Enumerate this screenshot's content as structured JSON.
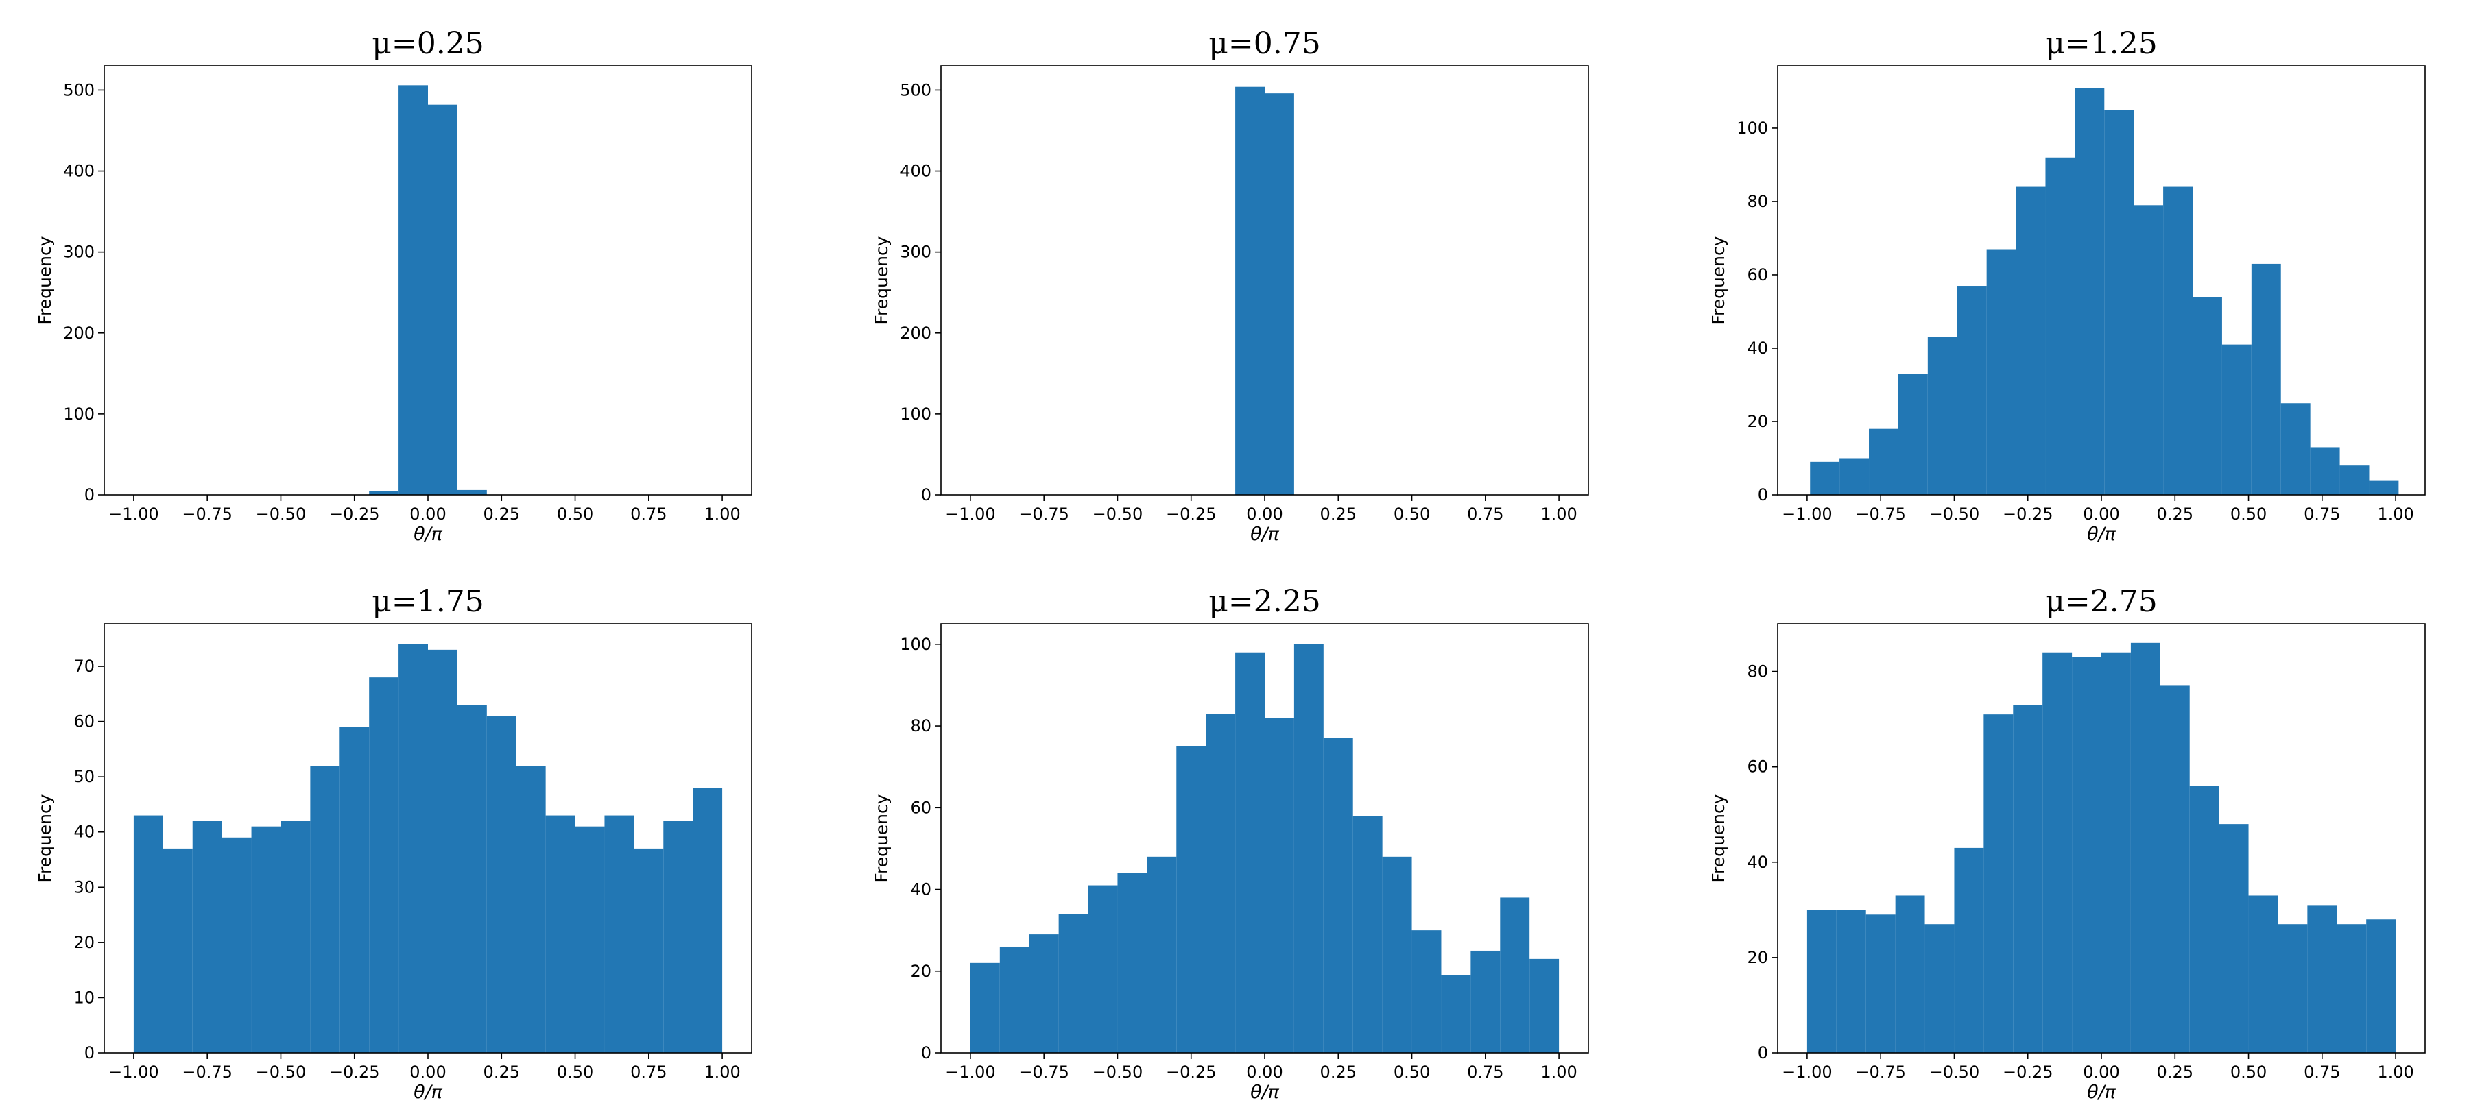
{
  "chart_data": [
    {
      "type": "bar",
      "title": "μ=0.25",
      "xlabel": "θ/π",
      "ylabel": "Frequency",
      "xlim": [
        -1.1,
        1.1
      ],
      "ylim": [
        0,
        530
      ],
      "grid": false,
      "xticks": [
        -1.0,
        -0.75,
        -0.5,
        -0.25,
        0.0,
        0.25,
        0.5,
        0.75,
        1.0
      ],
      "xtick_labels": [
        "−1.00",
        "−0.75",
        "−0.50",
        "−0.25",
        "0.00",
        "0.25",
        "0.50",
        "0.75",
        "1.00"
      ],
      "yticks": [
        0,
        100,
        200,
        300,
        400,
        500
      ],
      "ytick_labels": [
        "0",
        "100",
        "200",
        "300",
        "400",
        "500"
      ],
      "bin_edges": [
        -0.3,
        -0.2,
        -0.1,
        0.0,
        0.1,
        0.2
      ],
      "values": [
        0,
        5,
        506,
        482,
        6
      ]
    },
    {
      "type": "bar",
      "title": "μ=0.75",
      "xlabel": "θ/π",
      "ylabel": "Frequency",
      "xlim": [
        -1.1,
        1.1
      ],
      "ylim": [
        0,
        530
      ],
      "grid": false,
      "xticks": [
        -1.0,
        -0.75,
        -0.5,
        -0.25,
        0.0,
        0.25,
        0.5,
        0.75,
        1.0
      ],
      "xtick_labels": [
        "−1.00",
        "−0.75",
        "−0.50",
        "−0.25",
        "0.00",
        "0.25",
        "0.50",
        "0.75",
        "1.00"
      ],
      "yticks": [
        0,
        100,
        200,
        300,
        400,
        500
      ],
      "ytick_labels": [
        "0",
        "100",
        "200",
        "300",
        "400",
        "500"
      ],
      "bin_edges": [
        -0.1,
        0.0,
        0.1
      ],
      "values": [
        504,
        496
      ]
    },
    {
      "type": "bar",
      "title": "μ=1.25",
      "xlabel": "θ/π",
      "ylabel": "Frequency",
      "xlim": [
        -1.1,
        1.1
      ],
      "ylim": [
        0,
        117
      ],
      "grid": false,
      "xticks": [
        -1.0,
        -0.75,
        -0.5,
        -0.25,
        0.0,
        0.25,
        0.5,
        0.75,
        1.0
      ],
      "xtick_labels": [
        "−1.00",
        "−0.75",
        "−0.50",
        "−0.25",
        "0.00",
        "0.25",
        "0.50",
        "0.75",
        "1.00"
      ],
      "yticks": [
        0,
        20,
        40,
        60,
        80,
        100
      ],
      "ytick_labels": [
        "0",
        "20",
        "40",
        "60",
        "80",
        "100"
      ],
      "bin_edges": [
        -0.99,
        -0.89,
        -0.79,
        -0.69,
        -0.59,
        -0.49,
        -0.39,
        -0.29,
        -0.19,
        -0.09,
        0.01,
        0.11,
        0.21,
        0.31,
        0.41,
        0.51,
        0.61,
        0.71,
        0.81,
        0.91,
        1.01
      ],
      "values": [
        9,
        10,
        18,
        33,
        43,
        57,
        67,
        84,
        92,
        111,
        105,
        79,
        84,
        54,
        41,
        63,
        25,
        13,
        8,
        4
      ]
    },
    {
      "type": "bar",
      "title": "μ=1.75",
      "xlabel": "θ/π",
      "ylabel": "Frequency",
      "xlim": [
        -1.1,
        1.1
      ],
      "ylim": [
        0,
        77.7
      ],
      "grid": false,
      "xticks": [
        -1.0,
        -0.75,
        -0.5,
        -0.25,
        0.0,
        0.25,
        0.5,
        0.75,
        1.0
      ],
      "xtick_labels": [
        "−1.00",
        "−0.75",
        "−0.50",
        "−0.25",
        "0.00",
        "0.25",
        "0.50",
        "0.75",
        "1.00"
      ],
      "yticks": [
        0,
        10,
        20,
        30,
        40,
        50,
        60,
        70
      ],
      "ytick_labels": [
        "0",
        "10",
        "20",
        "30",
        "40",
        "50",
        "60",
        "70"
      ],
      "bin_edges": [
        -1.0,
        -0.9,
        -0.8,
        -0.7,
        -0.6,
        -0.5,
        -0.4,
        -0.3,
        -0.2,
        -0.1,
        0.0,
        0.1,
        0.2,
        0.3,
        0.4,
        0.5,
        0.6,
        0.7,
        0.8,
        0.9,
        1.0
      ],
      "values": [
        43,
        37,
        42,
        39,
        41,
        42,
        52,
        59,
        68,
        74,
        73,
        63,
        61,
        52,
        43,
        41,
        43,
        37,
        42,
        48
      ]
    },
    {
      "type": "bar",
      "title": "μ=2.25",
      "xlabel": "θ/π",
      "ylabel": "Frequency",
      "xlim": [
        -1.1,
        1.1
      ],
      "ylim": [
        0,
        105
      ],
      "grid": false,
      "xticks": [
        -1.0,
        -0.75,
        -0.5,
        -0.25,
        0.0,
        0.25,
        0.5,
        0.75,
        1.0
      ],
      "xtick_labels": [
        "−1.00",
        "−0.75",
        "−0.50",
        "−0.25",
        "0.00",
        "0.25",
        "0.50",
        "0.75",
        "1.00"
      ],
      "yticks": [
        0,
        20,
        40,
        60,
        80,
        100
      ],
      "ytick_labels": [
        "0",
        "20",
        "40",
        "60",
        "80",
        "100"
      ],
      "bin_edges": [
        -1.0,
        -0.9,
        -0.8,
        -0.7,
        -0.6,
        -0.5,
        -0.4,
        -0.3,
        -0.2,
        -0.1,
        0.0,
        0.1,
        0.2,
        0.3,
        0.4,
        0.5,
        0.6,
        0.7,
        0.8,
        0.9,
        1.0
      ],
      "values": [
        22,
        26,
        29,
        34,
        41,
        44,
        48,
        75,
        83,
        98,
        82,
        100,
        77,
        58,
        48,
        30,
        19,
        25,
        38,
        23
      ]
    },
    {
      "type": "bar",
      "title": "μ=2.75",
      "xlabel": "θ/π",
      "ylabel": "Frequency",
      "xlim": [
        -1.1,
        1.1
      ],
      "ylim": [
        0,
        90
      ],
      "grid": false,
      "xticks": [
        -1.0,
        -0.75,
        -0.5,
        -0.25,
        0.0,
        0.25,
        0.5,
        0.75,
        1.0
      ],
      "xtick_labels": [
        "−1.00",
        "−0.75",
        "−0.50",
        "−0.25",
        "0.00",
        "0.25",
        "0.50",
        "0.75",
        "1.00"
      ],
      "yticks": [
        0,
        20,
        40,
        60,
        80
      ],
      "ytick_labels": [
        "0",
        "20",
        "40",
        "60",
        "80"
      ],
      "bin_edges": [
        -1.0,
        -0.9,
        -0.8,
        -0.7,
        -0.6,
        -0.5,
        -0.4,
        -0.3,
        -0.2,
        -0.1,
        0.0,
        0.1,
        0.2,
        0.3,
        0.4,
        0.5,
        0.6,
        0.7,
        0.8,
        0.9,
        1.0
      ],
      "values": [
        30,
        30,
        29,
        33,
        27,
        43,
        71,
        73,
        84,
        83,
        84,
        86,
        77,
        56,
        48,
        33,
        27,
        31,
        27,
        28
      ]
    }
  ],
  "colors": {
    "bar": "#2277b4",
    "axis": "#000000"
  }
}
